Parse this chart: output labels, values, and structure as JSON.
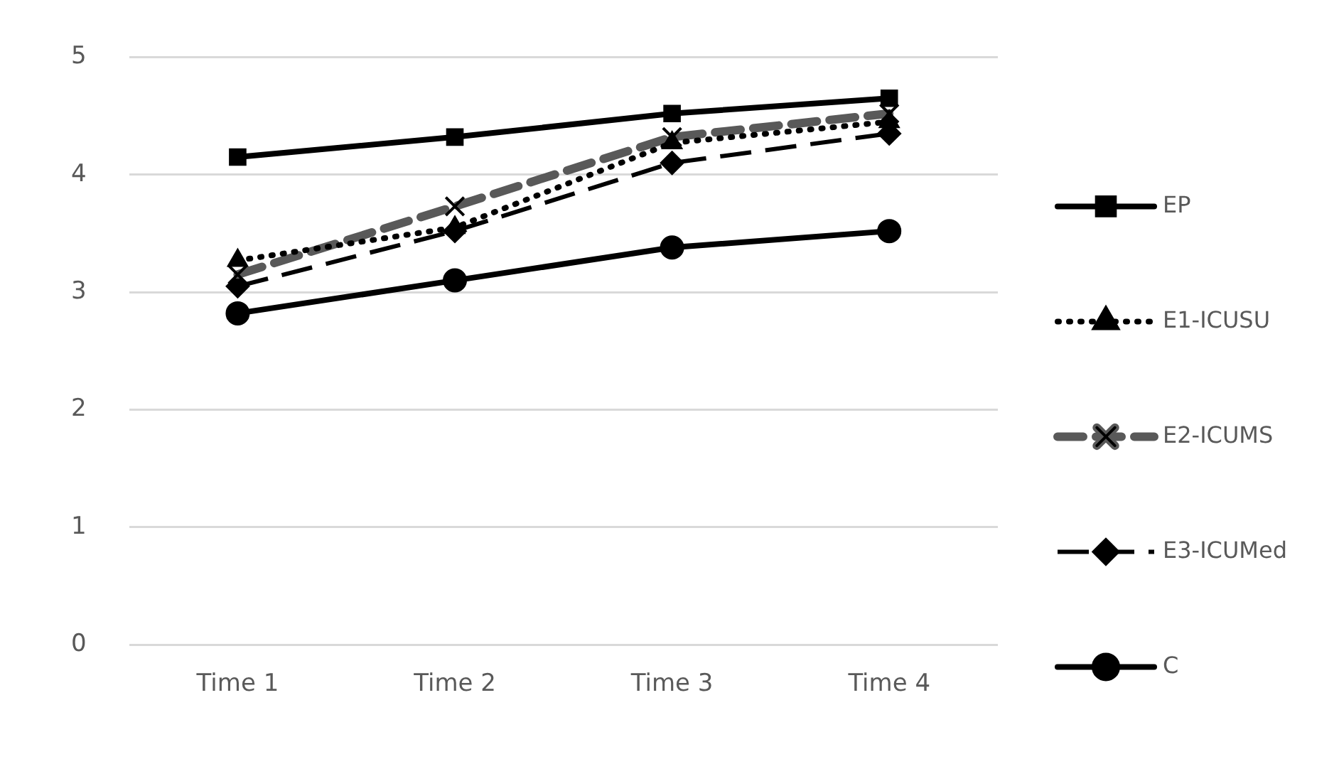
{
  "chart_data": {
    "type": "line",
    "categories": [
      "Time 1",
      "Time 2",
      "Time 3",
      "Time 4"
    ],
    "series": [
      {
        "name": "EP",
        "color": "#000000",
        "values": [
          4.15,
          4.32,
          4.52,
          4.65
        ],
        "marker": "square",
        "line_style": "solid"
      },
      {
        "name": "E1-ICUSU",
        "color": "#000000",
        "values": [
          3.27,
          3.55,
          4.27,
          4.45
        ],
        "marker": "triangle",
        "line_style": "dotted"
      },
      {
        "name": "E2-ICUMS",
        "color": "#595959",
        "values": [
          3.15,
          3.73,
          4.32,
          4.52
        ],
        "marker": "cross",
        "line_style": "dashed"
      },
      {
        "name": "E3-ICUMed",
        "color": "#000000",
        "values": [
          3.05,
          3.52,
          4.1,
          4.35
        ],
        "marker": "diamond",
        "line_style": "longdash"
      },
      {
        "name": "C",
        "color": "#000000",
        "values": [
          2.82,
          3.1,
          3.38,
          3.52
        ],
        "marker": "circle",
        "line_style": "solid"
      }
    ],
    "ylim": [
      0,
      5
    ],
    "yticks": [
      0,
      1,
      2,
      3,
      4,
      5
    ],
    "grid": "y",
    "legend": "right"
  }
}
